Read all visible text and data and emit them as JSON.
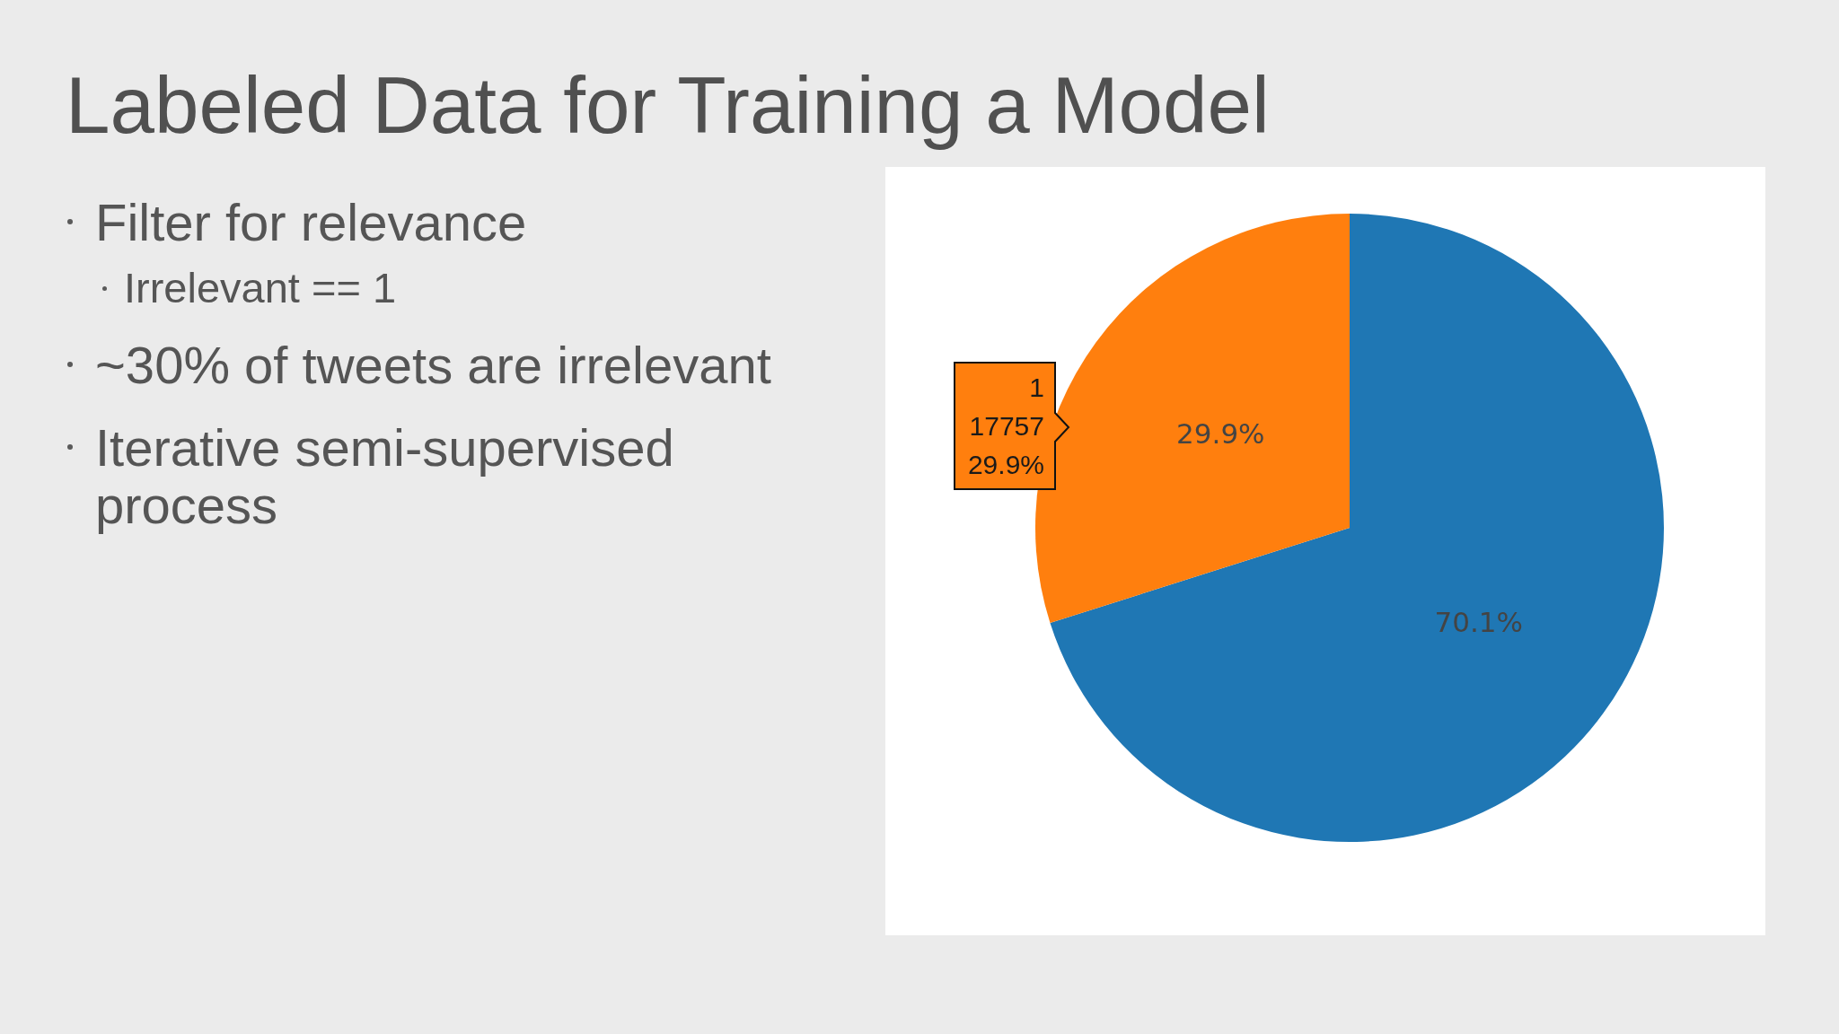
{
  "chart_data": {
    "type": "pie",
    "title": "Labeled Data for Training a Model",
    "categories": [
      null,
      "1"
    ],
    "values": [
      70.1,
      29.9
    ],
    "colors": [
      "#1f77b4",
      "#ff7f0e"
    ],
    "value_labels": [
      "70.1%",
      "29.9%"
    ],
    "annotations": [
      "Filter for relevance",
      "Irrelevant == 1",
      "~30% of tweets are irrelevant",
      "Iterative semi-supervised process",
      "17757"
    ]
  }
}
